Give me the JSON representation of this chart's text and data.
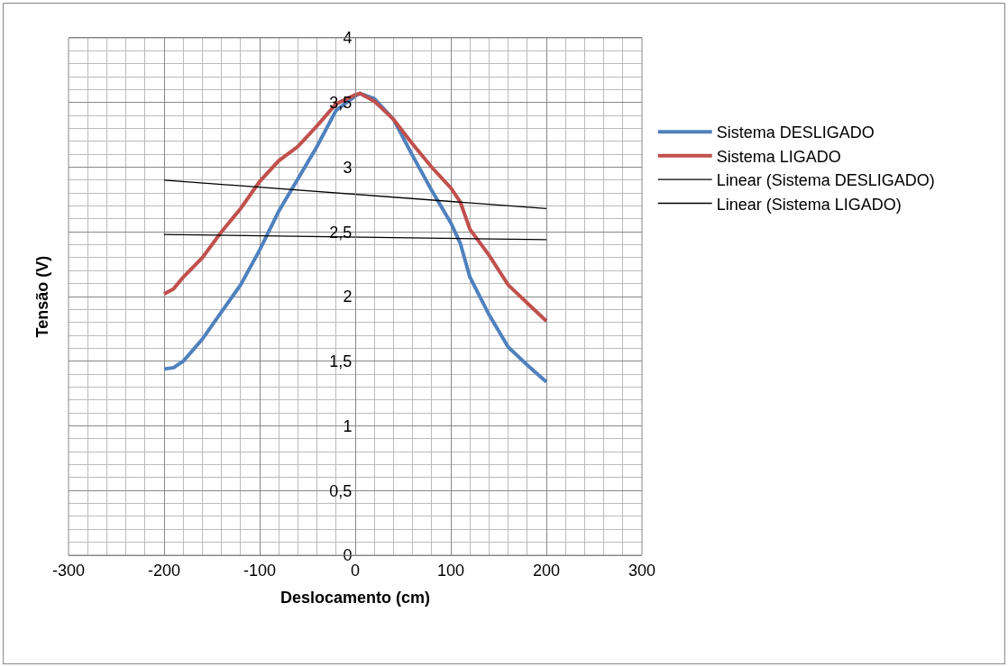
{
  "chart_data": {
    "type": "line",
    "xlabel": "Deslocamento (cm)",
    "ylabel": "Tensão (V)",
    "xlim": [
      -300,
      300
    ],
    "xticks": [
      -300,
      -200,
      -100,
      0,
      100,
      200,
      300
    ],
    "ylim": [
      0,
      4
    ],
    "yticks": [
      0,
      {
        "value": 0.5,
        "label": "0,5"
      },
      1,
      {
        "value": 1.5,
        "label": "1,5"
      },
      2,
      {
        "value": 2.5,
        "label": "2,5"
      },
      3,
      {
        "value": 3.5,
        "label": "3,5"
      },
      4
    ],
    "grid": true,
    "legend": "right",
    "marker": "none",
    "line_style": "solid",
    "series": [
      {
        "name": "Sistema DESLIGADO",
        "color": "#4f81bd",
        "x": [
          -200,
          -190,
          -180,
          -160,
          -140,
          -120,
          -100,
          -80,
          -60,
          -40,
          -20,
          0,
          5,
          20,
          40,
          60,
          80,
          100,
          110,
          120,
          140,
          160,
          180,
          200
        ],
        "values": [
          1.44,
          1.45,
          1.5,
          1.67,
          1.88,
          2.09,
          2.36,
          2.66,
          2.91,
          3.16,
          3.44,
          3.55,
          3.57,
          3.53,
          3.37,
          3.09,
          2.82,
          2.57,
          2.41,
          2.15,
          1.86,
          1.61,
          1.47,
          1.34
        ]
      },
      {
        "name": "Sistema LIGADO",
        "color": "#c0504d",
        "x": [
          -200,
          -190,
          -180,
          -160,
          -140,
          -120,
          -100,
          -80,
          -60,
          -40,
          -20,
          0,
          5,
          20,
          40,
          60,
          80,
          100,
          110,
          120,
          140,
          160,
          180,
          200
        ],
        "values": [
          2.02,
          2.06,
          2.15,
          2.3,
          2.5,
          2.68,
          2.89,
          3.05,
          3.16,
          3.32,
          3.49,
          3.56,
          3.57,
          3.51,
          3.37,
          3.18,
          3.0,
          2.84,
          2.73,
          2.52,
          2.32,
          2.09,
          1.95,
          1.81
        ]
      },
      {
        "name": "Linear (Sistema DESLIGADO)",
        "color": "#000000",
        "x": [
          -200,
          200
        ],
        "values": [
          2.48,
          2.44
        ]
      },
      {
        "name": "Linear (Sistema LIGADO)",
        "color": "#000000",
        "x": [
          -200,
          200
        ],
        "values": [
          2.9,
          2.68
        ]
      }
    ]
  }
}
